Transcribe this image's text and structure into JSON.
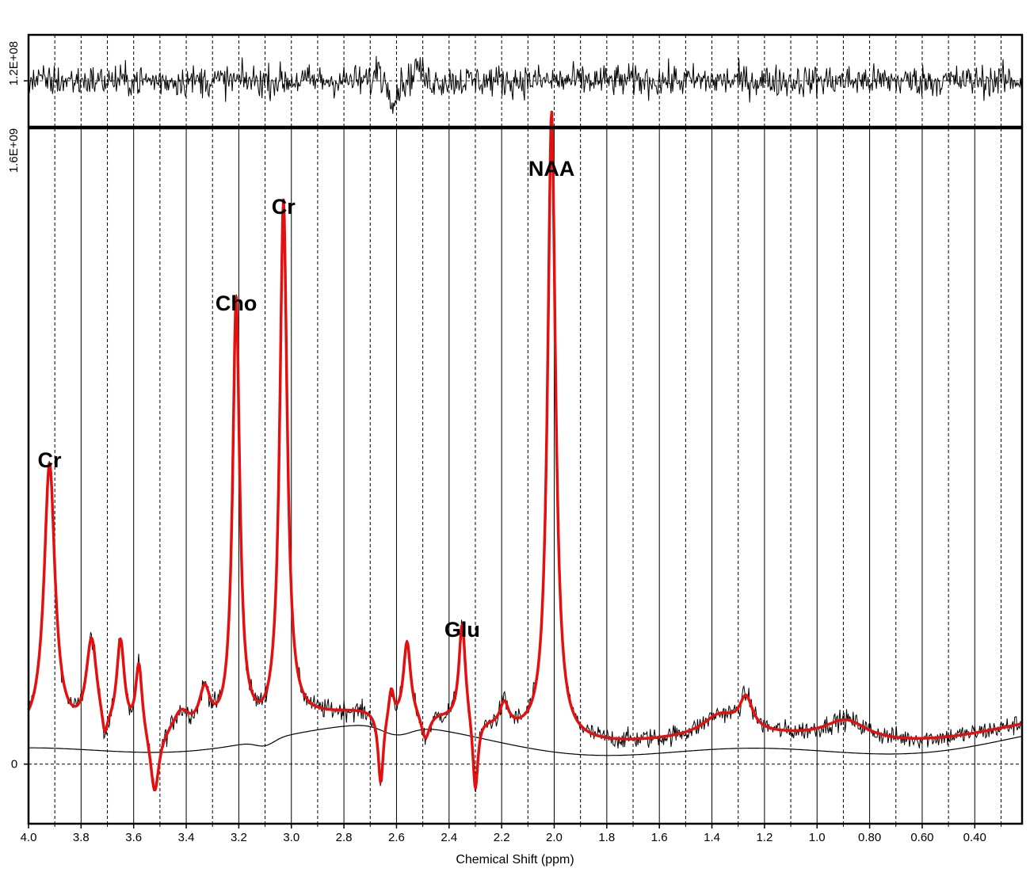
{
  "chart_data": {
    "type": "line",
    "xlabel": "Chemical Shift (ppm)",
    "x_axis_reversed": true,
    "xlim": [
      4.0,
      0.22
    ],
    "x_ticks": [
      4.0,
      3.8,
      3.6,
      3.4,
      3.2,
      3.0,
      2.8,
      2.6,
      2.4,
      2.2,
      2.0,
      1.8,
      1.6,
      1.4,
      1.2,
      1.0,
      0.8,
      0.6,
      0.4
    ],
    "x_tick_labels": [
      "4.0",
      "3.8",
      "3.6",
      "3.4",
      "3.2",
      "3.0",
      "2.8",
      "2.6",
      "2.4",
      "2.2",
      "2.0",
      "1.8",
      "1.6",
      "1.4",
      "1.2",
      "1.0",
      "0.80",
      "0.60",
      "0.40"
    ],
    "residual_panel": {
      "y_tick_labels": [
        "1.2E+08"
      ],
      "ylim": [
        -120000000,
        120000000
      ],
      "description_color": "#000000"
    },
    "main_panel": {
      "y_tick_labels": [
        "1.6E+09",
        "0"
      ],
      "ylim": [
        -150000000,
        1600000000
      ],
      "zero_line": 0
    },
    "grid": {
      "solid_lines_at": [
        3.8,
        3.6,
        3.4,
        3.2,
        3.0,
        2.8,
        2.6,
        2.4,
        2.2,
        2.0,
        1.8,
        1.6,
        1.4,
        1.2,
        1.0,
        0.8,
        0.6,
        0.4
      ],
      "dashed_lines_at": [
        3.9,
        3.7,
        3.5,
        3.3,
        3.1,
        2.9,
        2.7,
        2.5,
        2.3,
        2.1,
        1.9,
        1.7,
        1.5,
        1.3,
        1.1,
        0.9,
        0.7,
        0.5,
        0.3
      ]
    },
    "peaks": [
      {
        "label": "Cr",
        "ppm": 3.92,
        "height": 680000000,
        "width": 0.025
      },
      {
        "label": "Cho",
        "ppm": 3.21,
        "height": 1080000000,
        "width": 0.016
      },
      {
        "label": "Cr",
        "ppm": 3.03,
        "height": 1310000000,
        "width": 0.017
      },
      {
        "label": "Glu",
        "ppm": 2.35,
        "height": 250000000,
        "width": 0.015
      },
      {
        "label": "NAA",
        "ppm": 2.01,
        "height": 1580000000,
        "width": 0.018
      }
    ],
    "minor_features": [
      {
        "ppm": 3.76,
        "height": 230000000,
        "width": 0.025
      },
      {
        "ppm": 3.65,
        "height": 230000000,
        "width": 0.018
      },
      {
        "ppm": 3.58,
        "height": 180000000,
        "width": 0.015
      },
      {
        "ppm": 3.52,
        "height": -160000000,
        "width": 0.02
      },
      {
        "ppm": 3.42,
        "height": 60000000,
        "width": 0.04
      },
      {
        "ppm": 3.33,
        "height": 100000000,
        "width": 0.025
      },
      {
        "ppm": 3.71,
        "height": -60000000,
        "width": 0.012
      },
      {
        "ppm": 2.56,
        "height": 200000000,
        "width": 0.017
      },
      {
        "ppm": 2.62,
        "height": 80000000,
        "width": 0.012
      },
      {
        "ppm": 2.66,
        "height": -180000000,
        "width": 0.012
      },
      {
        "ppm": 2.49,
        "height": -70000000,
        "width": 0.02
      },
      {
        "ppm": 2.3,
        "height": -190000000,
        "width": 0.012
      },
      {
        "ppm": 2.19,
        "height": 60000000,
        "width": 0.02
      },
      {
        "ppm": 1.37,
        "height": 50000000,
        "width": 0.08
      },
      {
        "ppm": 1.27,
        "height": 80000000,
        "width": 0.03
      },
      {
        "ppm": 0.89,
        "height": 50000000,
        "width": 0.1
      }
    ],
    "series": [
      {
        "color": "#000000",
        "role": "data"
      },
      {
        "color": "#e41010",
        "role": "fit"
      },
      {
        "color": "#000000",
        "role": "baseline"
      }
    ],
    "annotations": [
      {
        "text": "Cr",
        "ppm": 3.92
      },
      {
        "text": "Cho",
        "ppm": 3.21
      },
      {
        "text": "Cr",
        "ppm": 3.03
      },
      {
        "text": "Glu",
        "ppm": 2.35
      },
      {
        "text": "NAA",
        "ppm": 2.01
      }
    ]
  }
}
